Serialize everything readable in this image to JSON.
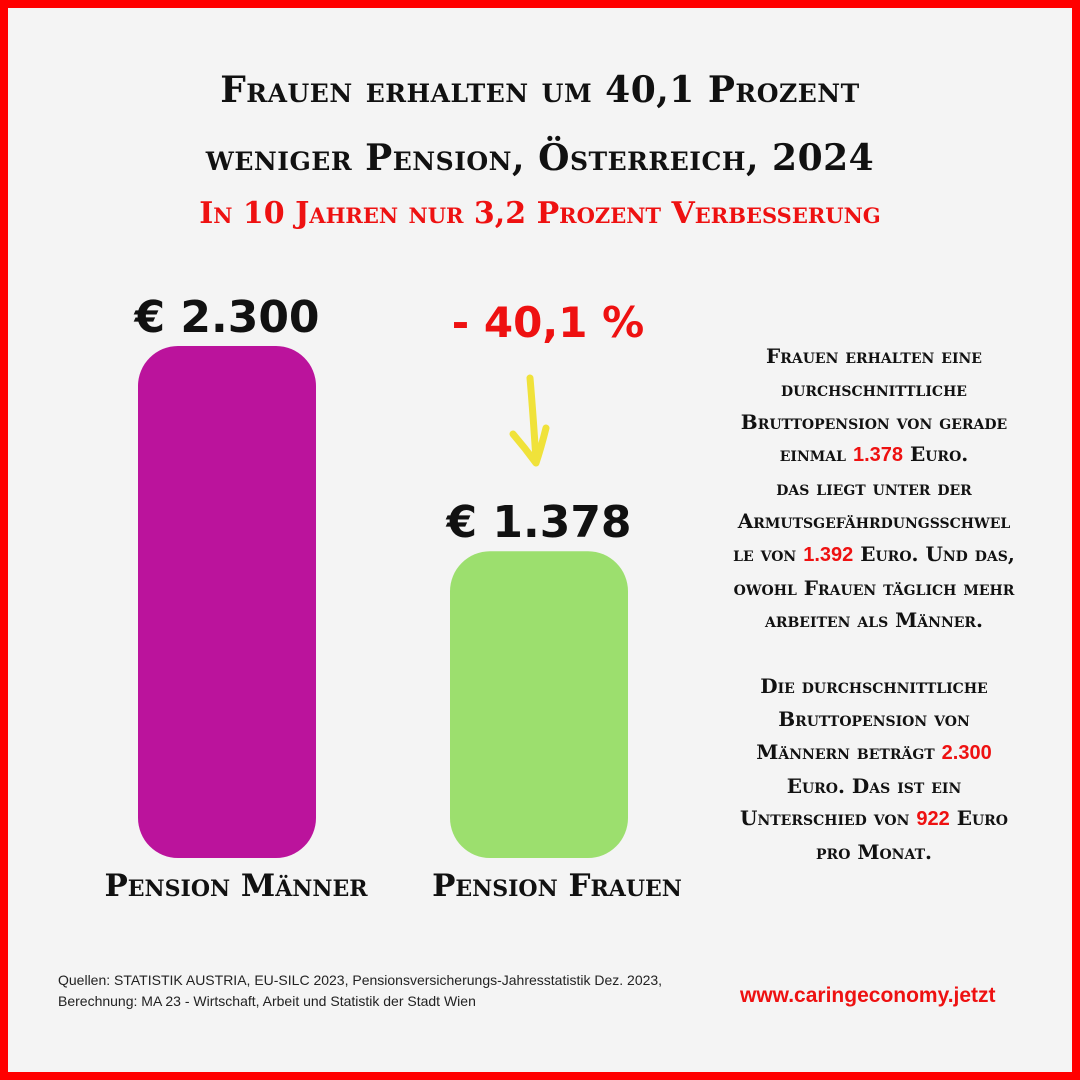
{
  "title": {
    "line1": "Frauen erhalten um 40,1 Prozent",
    "line2": "weniger Pension, Österreich, 2024"
  },
  "subtitle": "In 10 Jahren nur 3,2  Prozent Verbesserung",
  "chart_data": {
    "type": "bar",
    "categories": [
      "Pension Männer",
      "Pension Frauen"
    ],
    "values": [
      2300,
      1378
    ],
    "value_labels": [
      "€ 2.300",
      "€ 1.378"
    ],
    "colors": [
      "#bb139c",
      "#9cdf6e"
    ],
    "annotation": "- 40,1 %",
    "annotation_color": "#ee1111",
    "arrow_color": "#f0e23a",
    "grid": false
  },
  "info": {
    "p1_lines": [
      [
        {
          "t": "Frauen erhalten eine"
        }
      ],
      [
        {
          "t": "durchschnittliche"
        }
      ],
      [
        {
          "t": "Bruttopension von gerade"
        }
      ],
      [
        {
          "t": "einmal "
        },
        {
          "t": "1.378",
          "hl": true
        },
        {
          "t": " Euro."
        }
      ],
      [
        {
          "t": "das liegt  unter der"
        }
      ],
      [
        {
          "t": "Armutsgefährdungsschwel"
        }
      ],
      [
        {
          "t": "le von "
        },
        {
          "t": "1.392",
          "hl": true
        },
        {
          "t": " Euro. Und das,"
        }
      ],
      [
        {
          "t": "owohl Frauen täglich mehr"
        }
      ],
      [
        {
          "t": "arbeiten als Männer."
        }
      ]
    ],
    "p2_lines": [
      [
        {
          "t": "Die durchschnittliche"
        }
      ],
      [
        {
          "t": "Bruttopension von"
        }
      ],
      [
        {
          "t": "Männern beträgt "
        },
        {
          "t": "2.300",
          "hl": true
        }
      ],
      [
        {
          "t": "Euro. Das ist ein"
        }
      ],
      [
        {
          "t": "Unterschied von  "
        },
        {
          "t": "922",
          "hl": true
        },
        {
          "t": "  Euro"
        }
      ],
      [
        {
          "t": "pro Monat."
        }
      ]
    ]
  },
  "sources": "Quellen:   STATISTIK AUSTRIA, EU-SILC 2023, Pensionsversicherungs-Jahresstatistik Dez. 2023, Berechnung: MA 23 - Wirtschaft, Arbeit und Statistik der Stadt Wien",
  "website": "www.caringeconomy.jetzt"
}
